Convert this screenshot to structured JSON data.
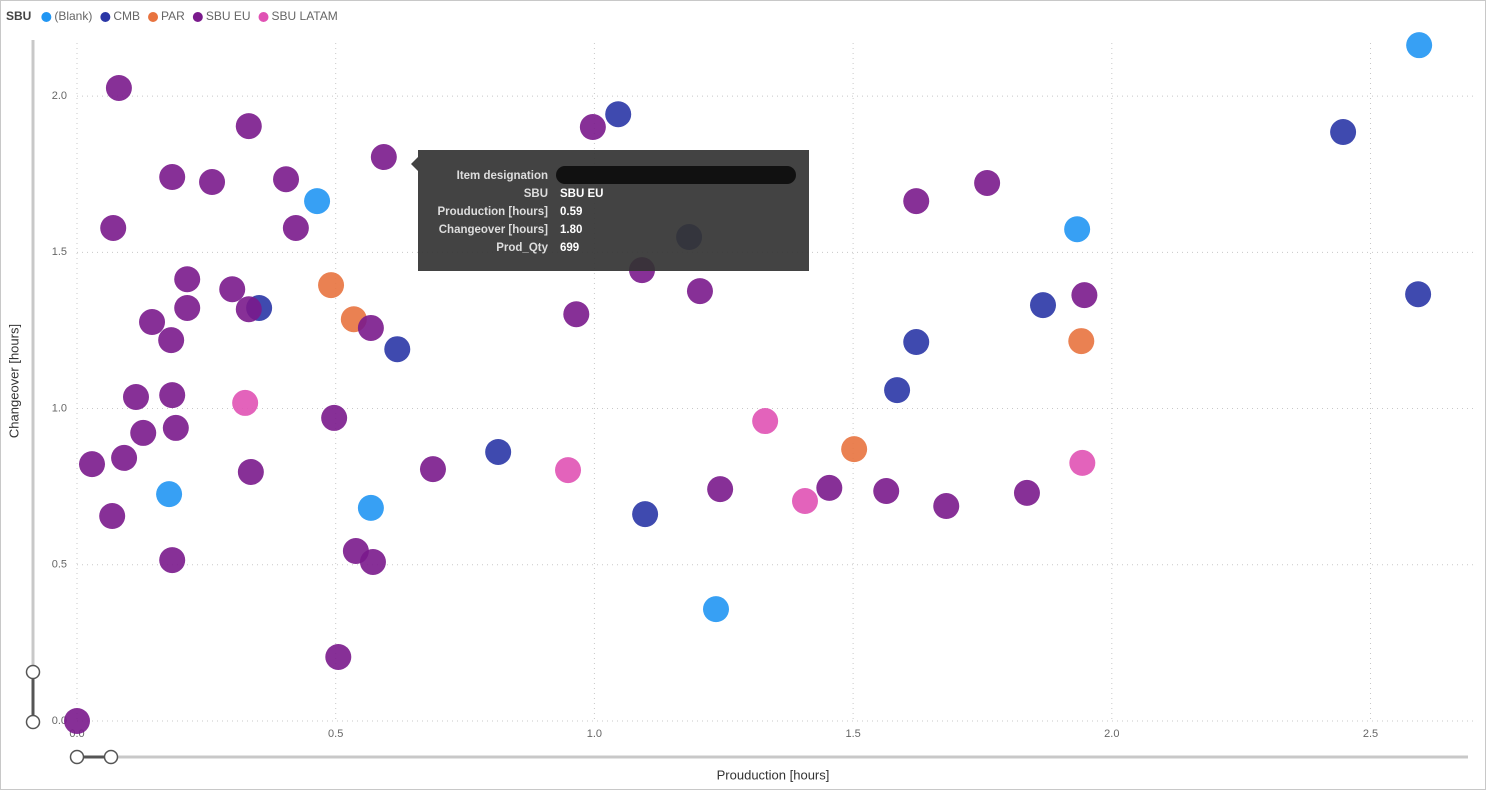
{
  "chart_data": {
    "type": "scatter",
    "legend_title": "SBU",
    "x_label": "Prouduction [hours]",
    "y_label": "Changeover [hours]",
    "xlim": [
      0,
      2.7
    ],
    "ylim": [
      0,
      2.17
    ],
    "xticks": [
      {
        "value": 0,
        "label": "0.0"
      },
      0.5,
      {
        "value": 1,
        "label": "1.0"
      },
      1.5,
      {
        "value": 2,
        "label": "2.0"
      },
      2.5
    ],
    "yticks": [
      {
        "value": 0,
        "label": "0.0"
      },
      0.5,
      {
        "value": 1,
        "label": "1.0"
      },
      1.5,
      {
        "value": 2,
        "label": "2.0"
      }
    ],
    "grid": true,
    "legend": "top-left",
    "series": [
      {
        "name": "(Blank)",
        "color": "#2196f3",
        "x": [
          0.464,
          0.178,
          0.568,
          1.235,
          1.933,
          2.594
        ],
        "values": [
          1.664,
          0.726,
          0.682,
          0.358,
          1.574,
          2.163
        ]
      },
      {
        "name": "CMB",
        "color": "#2a36a6",
        "x": [
          1.046,
          0.352,
          0.619,
          0.814,
          1.098,
          1.183,
          1.585,
          1.622,
          1.867,
          2.447,
          2.592
        ],
        "values": [
          1.942,
          1.322,
          1.19,
          0.861,
          0.662,
          1.549,
          1.059,
          1.213,
          1.331,
          1.885,
          1.366
        ]
      },
      {
        "name": "PAR",
        "color": "#e8733f",
        "x": [
          0.491,
          0.535,
          1.502,
          1.941
        ],
        "values": [
          1.395,
          1.286,
          0.87,
          1.216
        ]
      },
      {
        "name": "SBU EU",
        "color": "#7a1a8c",
        "x": [
          0.081,
          0.332,
          0.593,
          0.184,
          0.261,
          0.404,
          0.07,
          0.423,
          0.213,
          0.3,
          0.213,
          0.332,
          0.145,
          0.568,
          0.182,
          0.114,
          0.184,
          0.191,
          0.128,
          0.029,
          0.091,
          0.068,
          0.184,
          0.336,
          0.497,
          0.539,
          0.572,
          0.505,
          0,
          0.688,
          0.997,
          0.965,
          1.092,
          1.204,
          1.243,
          1.454,
          1.564,
          1.622,
          1.68,
          1.759,
          1.836,
          1.947
        ],
        "values": [
          2.026,
          1.904,
          1.805,
          1.741,
          1.725,
          1.734,
          1.578,
          1.578,
          1.414,
          1.382,
          1.322,
          1.318,
          1.277,
          1.258,
          1.219,
          1.037,
          1.043,
          0.938,
          0.922,
          0.822,
          0.842,
          0.656,
          0.515,
          0.797,
          0.97,
          0.544,
          0.509,
          0.205,
          0,
          0.806,
          1.901,
          1.302,
          1.443,
          1.376,
          0.742,
          0.746,
          0.736,
          1.664,
          0.688,
          1.722,
          0.73,
          1.363
        ]
      },
      {
        "name": "SBU LATAM",
        "color": "#e052b4",
        "x": [
          0.325,
          0.949,
          1.33,
          1.407,
          1.943
        ],
        "values": [
          1.018,
          0.803,
          0.96,
          0.704,
          0.826
        ]
      }
    ],
    "tooltip": {
      "rows": [
        {
          "label": "Item designation"
        },
        {
          "label": "SBU",
          "value": "SBU EU"
        },
        {
          "label": "Prouduction [hours]",
          "value": "0.59"
        },
        {
          "label": "Changeover [hours]",
          "value": "1.80"
        },
        {
          "label": "Prod_Qty",
          "value": "699"
        }
      ]
    }
  }
}
